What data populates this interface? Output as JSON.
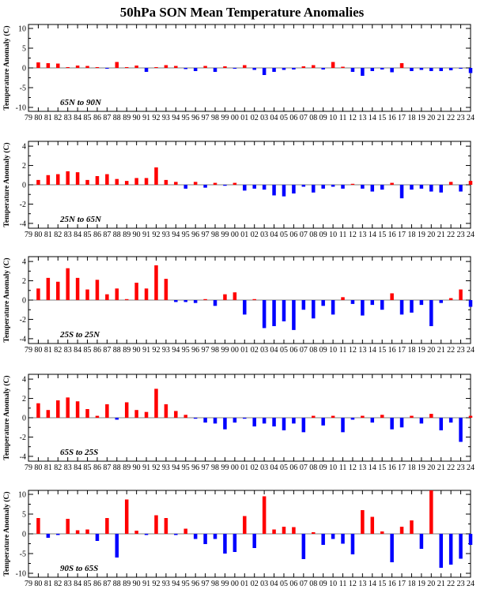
{
  "title": "50hPa SON Mean Temperature Anomalies",
  "colors": {
    "positive": "#ff0000",
    "negative": "#0000ff",
    "axis": "#000000"
  },
  "x_tick_labels": [
    "79",
    "80",
    "81",
    "82",
    "83",
    "84",
    "85",
    "86",
    "87",
    "88",
    "89",
    "90",
    "91",
    "92",
    "93",
    "94",
    "95",
    "96",
    "97",
    "98",
    "99",
    "00",
    "01",
    "02",
    "03",
    "04",
    "05",
    "06",
    "07",
    "08",
    "09",
    "10",
    "11",
    "12",
    "13",
    "14",
    "15",
    "16",
    "17",
    "18",
    "19",
    "20",
    "21",
    "22",
    "23",
    "24"
  ],
  "chart_data": [
    {
      "type": "bar",
      "region": "65N to 90N",
      "ylabel": "Temperature Anomaly (C)",
      "ylim": [
        -11,
        11
      ],
      "yticks": [
        -10,
        -5,
        0,
        5,
        10
      ],
      "years": [
        1980,
        1981,
        1982,
        1983,
        1984,
        1985,
        1986,
        1987,
        1988,
        1989,
        1990,
        1991,
        1992,
        1993,
        1994,
        1995,
        1996,
        1997,
        1998,
        1999,
        2000,
        2001,
        2002,
        2003,
        2004,
        2005,
        2006,
        2007,
        2008,
        2009,
        2010,
        2011,
        2012,
        2013,
        2014,
        2015,
        2016,
        2017,
        2018,
        2019,
        2020,
        2021,
        2022,
        2023,
        2024
      ],
      "values": [
        1.4,
        1.2,
        1.1,
        0.2,
        0.6,
        0.5,
        0.2,
        -0.2,
        1.5,
        0.2,
        0.6,
        -1.0,
        0.2,
        0.7,
        0.5,
        -0.3,
        -0.8,
        0.5,
        -1.0,
        0.4,
        -0.2,
        0.7,
        -0.5,
        -1.8,
        -1.0,
        -0.5,
        -0.4,
        0.4,
        0.7,
        -0.4,
        1.5,
        0.3,
        -1.0,
        -2.0,
        -0.8,
        -0.4,
        -1.1,
        1.2,
        -0.8,
        -0.5,
        -0.8,
        -0.8,
        -0.6,
        -0.2,
        -1.3
      ]
    },
    {
      "type": "bar",
      "region": "25N to 65N",
      "ylabel": "Temperature Anomaly (C)",
      "ylim": [
        -4.5,
        4.5
      ],
      "yticks": [
        -4,
        -2,
        0,
        2,
        4
      ],
      "years": [
        1980,
        1981,
        1982,
        1983,
        1984,
        1985,
        1986,
        1987,
        1988,
        1989,
        1990,
        1991,
        1992,
        1993,
        1994,
        1995,
        1996,
        1997,
        1998,
        1999,
        2000,
        2001,
        2002,
        2003,
        2004,
        2005,
        2006,
        2007,
        2008,
        2009,
        2010,
        2011,
        2012,
        2013,
        2014,
        2015,
        2016,
        2017,
        2018,
        2019,
        2020,
        2021,
        2022,
        2023,
        2024
      ],
      "values": [
        0.5,
        1.0,
        1.1,
        1.4,
        1.3,
        0.5,
        0.9,
        1.1,
        0.6,
        0.4,
        0.7,
        0.7,
        1.8,
        0.5,
        0.3,
        -0.4,
        0.3,
        -0.3,
        0.2,
        -0.1,
        0.2,
        -0.6,
        -0.4,
        -0.5,
        -1.1,
        -1.2,
        -0.9,
        -0.2,
        -0.8,
        -0.4,
        -0.2,
        -0.4,
        0.1,
        -0.4,
        -0.7,
        -0.5,
        0.2,
        -1.4,
        -0.5,
        -0.4,
        -0.7,
        -0.8,
        0.3,
        -0.7,
        0.4
      ]
    },
    {
      "type": "bar",
      "region": "25S to 25N",
      "ylabel": "Temperature Anomaly (C)",
      "ylim": [
        -4.5,
        4.5
      ],
      "yticks": [
        -4,
        -2,
        0,
        2,
        4
      ],
      "years": [
        1980,
        1981,
        1982,
        1983,
        1984,
        1985,
        1986,
        1987,
        1988,
        1989,
        1990,
        1991,
        1992,
        1993,
        1994,
        1995,
        1996,
        1997,
        1998,
        1999,
        2000,
        2001,
        2002,
        2003,
        2004,
        2005,
        2006,
        2007,
        2008,
        2009,
        2010,
        2011,
        2012,
        2013,
        2014,
        2015,
        2016,
        2017,
        2018,
        2019,
        2020,
        2021,
        2022,
        2023,
        2024
      ],
      "values": [
        1.2,
        2.3,
        1.9,
        3.3,
        2.3,
        1.1,
        2.1,
        0.6,
        1.2,
        0.1,
        1.8,
        1.2,
        3.6,
        2.2,
        -0.2,
        -0.2,
        -0.3,
        0.1,
        -0.6,
        0.6,
        0.8,
        -1.5,
        0.1,
        -2.9,
        -2.7,
        -2.2,
        -3.1,
        -1.0,
        -1.9,
        -0.6,
        -1.5,
        0.3,
        -0.4,
        -1.6,
        -0.5,
        -1.0,
        0.7,
        -1.5,
        -1.3,
        -0.5,
        -2.7,
        -0.3,
        0.2,
        1.1,
        -0.7
      ]
    },
    {
      "type": "bar",
      "region": "65S to 25S",
      "ylabel": "Temperature Anomaly (C)",
      "ylim": [
        -4.5,
        4.5
      ],
      "yticks": [
        -4,
        -2,
        0,
        2,
        4
      ],
      "years": [
        1980,
        1981,
        1982,
        1983,
        1984,
        1985,
        1986,
        1987,
        1988,
        1989,
        1990,
        1991,
        1992,
        1993,
        1994,
        1995,
        1996,
        1997,
        1998,
        1999,
        2000,
        2001,
        2002,
        2003,
        2004,
        2005,
        2006,
        2007,
        2008,
        2009,
        2010,
        2011,
        2012,
        2013,
        2014,
        2015,
        2016,
        2017,
        2018,
        2019,
        2020,
        2021,
        2022,
        2023,
        2024
      ],
      "values": [
        1.5,
        0.8,
        1.8,
        2.1,
        1.7,
        0.9,
        0.2,
        1.4,
        -0.2,
        1.6,
        0.8,
        0.6,
        3.0,
        1.4,
        0.7,
        0.3,
        -0.1,
        -0.5,
        -0.6,
        -1.2,
        -0.5,
        -0.1,
        -0.9,
        -0.6,
        -0.9,
        -1.3,
        -0.6,
        -1.5,
        0.2,
        -0.8,
        0.2,
        -1.5,
        -0.2,
        0.2,
        -0.5,
        0.3,
        -1.2,
        -1.0,
        0.2,
        -0.6,
        0.4,
        -1.3,
        -0.5,
        -2.5,
        0.2
      ]
    },
    {
      "type": "bar",
      "region": "90S to 65S",
      "ylabel": "Temperature Anomaly (C)",
      "ylim": [
        -11,
        11
      ],
      "yticks": [
        -10,
        -5,
        0,
        5,
        10
      ],
      "years": [
        1980,
        1981,
        1982,
        1983,
        1984,
        1985,
        1986,
        1987,
        1988,
        1989,
        1990,
        1991,
        1992,
        1993,
        1994,
        1995,
        1996,
        1997,
        1998,
        1999,
        2000,
        2001,
        2002,
        2003,
        2004,
        2005,
        2006,
        2007,
        2008,
        2009,
        2010,
        2011,
        2012,
        2013,
        2014,
        2015,
        2016,
        2017,
        2018,
        2019,
        2020,
        2021,
        2022,
        2023,
        2024
      ],
      "values": [
        4.0,
        -1.0,
        -0.3,
        3.8,
        0.9,
        1.1,
        -1.8,
        4.0,
        -6.0,
        8.7,
        0.8,
        -0.3,
        4.7,
        4.0,
        -0.3,
        1.3,
        -1.3,
        -2.6,
        -1.3,
        -5.0,
        -4.6,
        4.5,
        -3.6,
        9.5,
        1.1,
        1.8,
        1.7,
        -6.4,
        0.4,
        -2.8,
        -1.3,
        -2.5,
        -5.2,
        6.0,
        4.3,
        0.6,
        -7.2,
        1.8,
        3.4,
        -3.8,
        11.0,
        -8.6,
        -7.8,
        -6.3,
        -2.8
      ]
    }
  ]
}
